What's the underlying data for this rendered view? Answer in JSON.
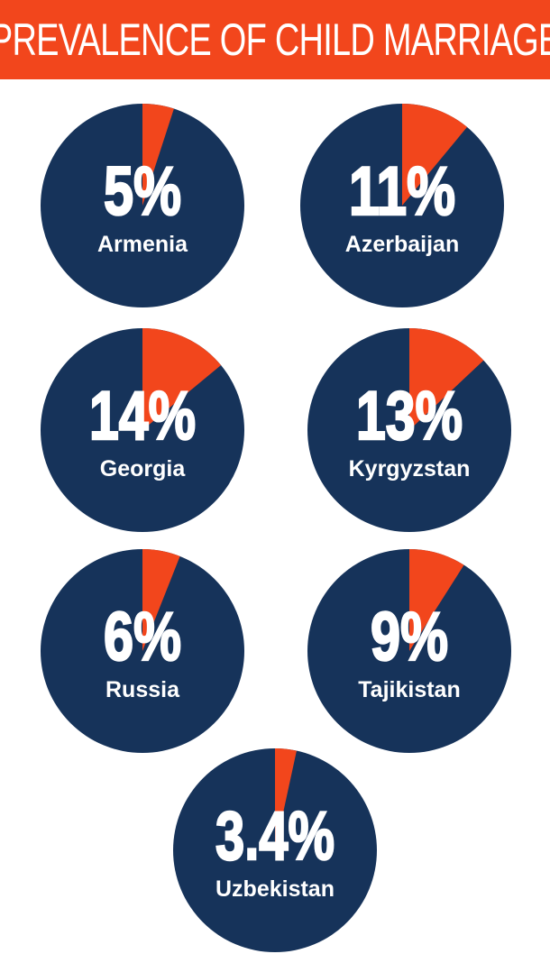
{
  "title": "PREVALENCE OF CHILD MARRIAGE",
  "colors": {
    "header_bg": "#f2461c",
    "pie_base": "#16335a",
    "pie_slice": "#f2461c",
    "text": "#ffffff"
  },
  "chart_data": {
    "type": "pie",
    "title": "PREVALENCE OF CHILD MARRIAGE",
    "unit": "%",
    "items": [
      {
        "country": "Armenia",
        "value": 5,
        "label": "5%"
      },
      {
        "country": "Azerbaijan",
        "value": 11,
        "label": "11%"
      },
      {
        "country": "Georgia",
        "value": 14,
        "label": "14%"
      },
      {
        "country": "Kyrgyzstan",
        "value": 13,
        "label": "13%"
      },
      {
        "country": "Russia",
        "value": 6,
        "label": "6%"
      },
      {
        "country": "Tajikistan",
        "value": 9,
        "label": "9%"
      },
      {
        "country": "Uzbekistan",
        "value": 3.4,
        "label": "3.4%"
      }
    ]
  }
}
